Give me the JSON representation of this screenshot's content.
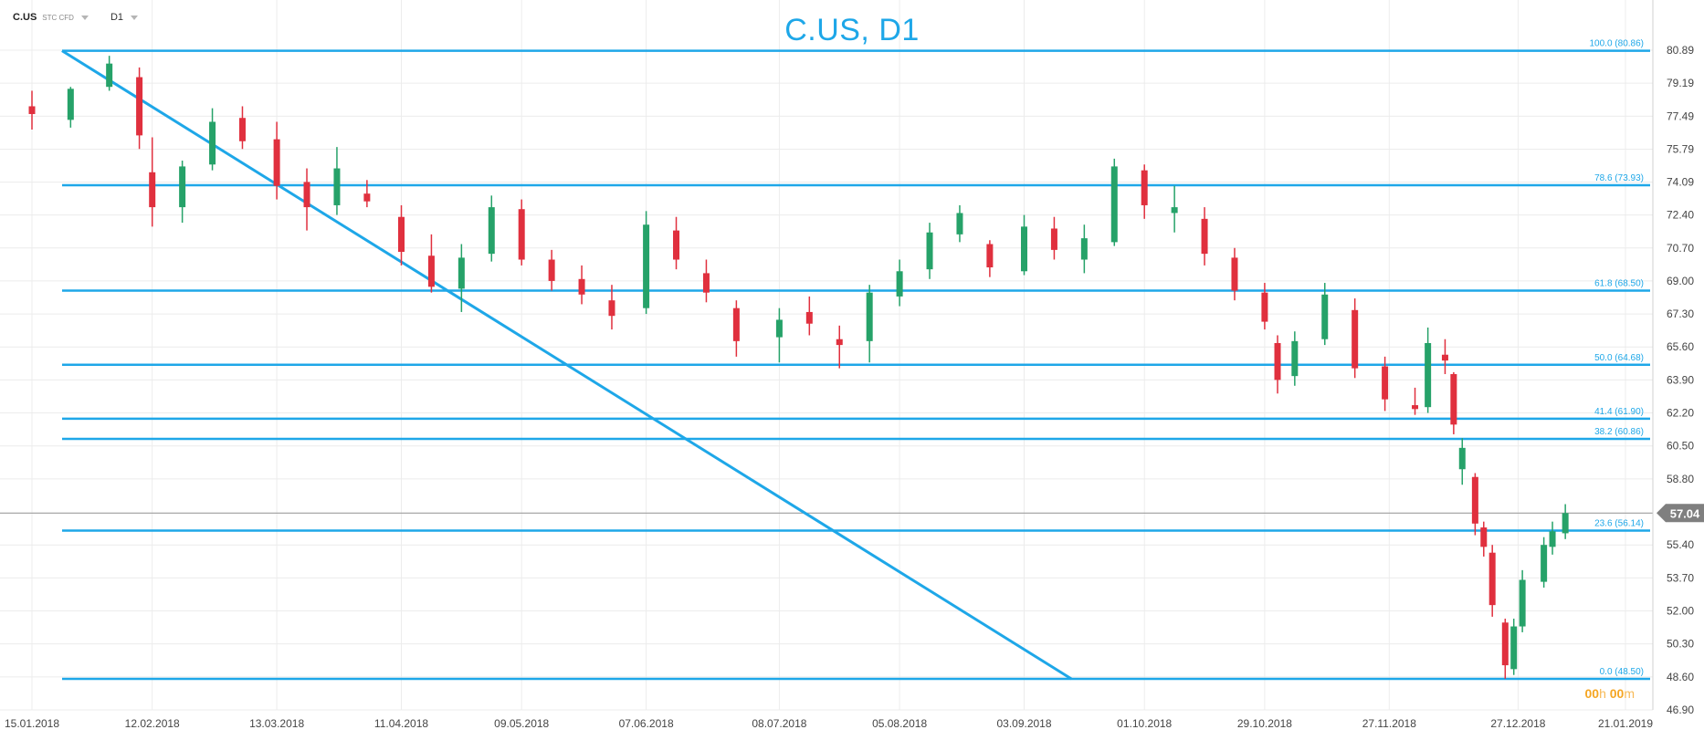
{
  "header": {
    "symbol": "C.US",
    "instrument_type": "STC CFD",
    "timeframe": "D1"
  },
  "title": "C.US, D1",
  "timer": {
    "hours": "00",
    "h": "h",
    "minutes": "00",
    "m": "m"
  },
  "colors": {
    "up": "#26a269",
    "down": "#e0303e",
    "line": "#1ea7e8",
    "grid": "#ececec",
    "price_tag": "#7f7f7f"
  },
  "chart_data": {
    "type": "candlestick",
    "title": "C.US, D1",
    "ylim": [
      46.9,
      80.89
    ],
    "y_ticks": [
      "80.89",
      "79.19",
      "77.49",
      "75.79",
      "74.09",
      "72.40",
      "70.70",
      "69.00",
      "67.30",
      "65.60",
      "63.90",
      "62.20",
      "60.50",
      "58.80",
      "57.04",
      "55.40",
      "53.70",
      "52.00",
      "50.30",
      "48.60",
      "46.90"
    ],
    "x_ticks": [
      "15.01.2018",
      "12.02.2018",
      "13.03.2018",
      "11.04.2018",
      "09.05.2018",
      "07.06.2018",
      "08.07.2018",
      "05.08.2018",
      "03.09.2018",
      "01.10.2018",
      "29.10.2018",
      "27.11.2018",
      "27.12.2018",
      "21.01.2019"
    ],
    "x_range": [
      "15.01.2018",
      "21.01.2019"
    ],
    "current_price": "57.04",
    "fibonacci_levels": [
      {
        "label": "100.0 (80.86)",
        "value": 80.86
      },
      {
        "label": "78.6 (73.93)",
        "value": 73.93
      },
      {
        "label": "61.8 (68.50)",
        "value": 68.5
      },
      {
        "label": "50.0 (64.68)",
        "value": 64.68
      },
      {
        "label": "41.4 (61.90)",
        "value": 61.9
      },
      {
        "label": "38.2 (60.86)",
        "value": 60.86
      },
      {
        "label": "23.6 (56.14)",
        "value": 56.14
      },
      {
        "label": "0.0 (48.50)",
        "value": 48.5
      }
    ],
    "trendline": {
      "from": {
        "date": "22.01.2018",
        "value": 80.86
      },
      "to": {
        "date": "14.09.2018",
        "value": 48.5
      }
    },
    "series": [
      {
        "x": "15.01.2018",
        "o": 78.0,
        "h": 78.8,
        "l": 76.8,
        "c": 77.6
      },
      {
        "x": "24.01.2018",
        "o": 77.3,
        "h": 79.0,
        "l": 76.9,
        "c": 78.9
      },
      {
        "x": "02.02.2018",
        "o": 79.0,
        "h": 80.6,
        "l": 78.8,
        "c": 80.2
      },
      {
        "x": "09.02.2018",
        "o": 79.5,
        "h": 80.0,
        "l": 75.8,
        "c": 76.5
      },
      {
        "x": "12.02.2018",
        "o": 74.6,
        "h": 76.4,
        "l": 71.8,
        "c": 72.8
      },
      {
        "x": "19.02.2018",
        "o": 72.8,
        "h": 75.2,
        "l": 72.0,
        "c": 74.9
      },
      {
        "x": "26.02.2018",
        "o": 75.0,
        "h": 77.9,
        "l": 74.7,
        "c": 77.2
      },
      {
        "x": "05.03.2018",
        "o": 77.4,
        "h": 78.0,
        "l": 75.8,
        "c": 76.2
      },
      {
        "x": "13.03.2018",
        "o": 76.3,
        "h": 77.2,
        "l": 73.2,
        "c": 73.9
      },
      {
        "x": "20.03.2018",
        "o": 74.1,
        "h": 74.8,
        "l": 71.6,
        "c": 72.8
      },
      {
        "x": "27.03.2018",
        "o": 72.9,
        "h": 75.9,
        "l": 72.4,
        "c": 74.8
      },
      {
        "x": "03.04.2018",
        "o": 73.5,
        "h": 74.2,
        "l": 72.8,
        "c": 73.1
      },
      {
        "x": "11.04.2018",
        "o": 72.3,
        "h": 72.9,
        "l": 69.8,
        "c": 70.5
      },
      {
        "x": "18.04.2018",
        "o": 70.3,
        "h": 71.4,
        "l": 68.4,
        "c": 68.7
      },
      {
        "x": "25.04.2018",
        "o": 68.6,
        "h": 70.9,
        "l": 67.4,
        "c": 70.2
      },
      {
        "x": "02.05.2018",
        "o": 70.4,
        "h": 73.4,
        "l": 70.0,
        "c": 72.8
      },
      {
        "x": "09.05.2018",
        "o": 72.7,
        "h": 73.2,
        "l": 69.8,
        "c": 70.1
      },
      {
        "x": "16.05.2018",
        "o": 70.1,
        "h": 70.6,
        "l": 68.5,
        "c": 69.0
      },
      {
        "x": "23.05.2018",
        "o": 69.1,
        "h": 69.8,
        "l": 67.8,
        "c": 68.3
      },
      {
        "x": "30.05.2018",
        "o": 68.0,
        "h": 68.8,
        "l": 66.5,
        "c": 67.2
      },
      {
        "x": "07.06.2018",
        "o": 67.6,
        "h": 72.6,
        "l": 67.3,
        "c": 71.9
      },
      {
        "x": "14.06.2018",
        "o": 71.6,
        "h": 72.3,
        "l": 69.6,
        "c": 70.1
      },
      {
        "x": "21.06.2018",
        "o": 69.4,
        "h": 70.1,
        "l": 67.9,
        "c": 68.4
      },
      {
        "x": "28.06.2018",
        "o": 67.6,
        "h": 68.0,
        "l": 65.1,
        "c": 65.9
      },
      {
        "x": "08.07.2018",
        "o": 66.1,
        "h": 67.6,
        "l": 64.8,
        "c": 67.0
      },
      {
        "x": "15.07.2018",
        "o": 67.4,
        "h": 68.2,
        "l": 66.2,
        "c": 66.8
      },
      {
        "x": "22.07.2018",
        "o": 66.0,
        "h": 66.7,
        "l": 64.5,
        "c": 65.7
      },
      {
        "x": "29.07.2018",
        "o": 65.9,
        "h": 68.8,
        "l": 64.8,
        "c": 68.4
      },
      {
        "x": "05.08.2018",
        "o": 68.2,
        "h": 70.1,
        "l": 67.7,
        "c": 69.5
      },
      {
        "x": "12.08.2018",
        "o": 69.6,
        "h": 72.0,
        "l": 69.1,
        "c": 71.5
      },
      {
        "x": "19.08.2018",
        "o": 71.4,
        "h": 72.9,
        "l": 71.0,
        "c": 72.5
      },
      {
        "x": "26.08.2018",
        "o": 70.9,
        "h": 71.1,
        "l": 69.2,
        "c": 69.7
      },
      {
        "x": "03.09.2018",
        "o": 69.5,
        "h": 72.4,
        "l": 69.3,
        "c": 71.8
      },
      {
        "x": "10.09.2018",
        "o": 71.7,
        "h": 72.3,
        "l": 70.1,
        "c": 70.6
      },
      {
        "x": "17.09.2018",
        "o": 70.1,
        "h": 71.9,
        "l": 69.4,
        "c": 71.2
      },
      {
        "x": "24.09.2018",
        "o": 71.0,
        "h": 75.3,
        "l": 70.8,
        "c": 74.9
      },
      {
        "x": "01.10.2018",
        "o": 74.7,
        "h": 75.0,
        "l": 72.2,
        "c": 72.9
      },
      {
        "x": "08.10.2018",
        "o": 72.5,
        "h": 73.9,
        "l": 71.5,
        "c": 72.8
      },
      {
        "x": "15.10.2018",
        "o": 72.2,
        "h": 72.8,
        "l": 69.8,
        "c": 70.4
      },
      {
        "x": "22.10.2018",
        "o": 70.2,
        "h": 70.7,
        "l": 68.0,
        "c": 68.5
      },
      {
        "x": "29.10.2018",
        "o": 68.4,
        "h": 68.9,
        "l": 66.5,
        "c": 66.9
      },
      {
        "x": "01.11.2018",
        "o": 65.8,
        "h": 66.2,
        "l": 63.2,
        "c": 63.9
      },
      {
        "x": "05.11.2018",
        "o": 64.1,
        "h": 66.4,
        "l": 63.6,
        "c": 65.9
      },
      {
        "x": "12.11.2018",
        "o": 66.0,
        "h": 68.9,
        "l": 65.7,
        "c": 68.3
      },
      {
        "x": "19.11.2018",
        "o": 67.5,
        "h": 68.1,
        "l": 64.0,
        "c": 64.5
      },
      {
        "x": "26.11.2018",
        "o": 64.6,
        "h": 65.1,
        "l": 62.3,
        "c": 62.9
      },
      {
        "x": "03.12.2018",
        "o": 62.6,
        "h": 63.5,
        "l": 62.1,
        "c": 62.4
      },
      {
        "x": "06.12.2018",
        "o": 62.5,
        "h": 66.6,
        "l": 62.2,
        "c": 65.8
      },
      {
        "x": "10.12.2018",
        "o": 65.2,
        "h": 66.0,
        "l": 64.2,
        "c": 64.9
      },
      {
        "x": "12.12.2018",
        "o": 64.2,
        "h": 64.3,
        "l": 61.1,
        "c": 61.6
      },
      {
        "x": "14.12.2018",
        "o": 59.3,
        "h": 60.9,
        "l": 58.5,
        "c": 60.4
      },
      {
        "x": "17.12.2018",
        "o": 58.9,
        "h": 59.1,
        "l": 55.9,
        "c": 56.5
      },
      {
        "x": "19.12.2018",
        "o": 56.3,
        "h": 56.6,
        "l": 54.8,
        "c": 55.3
      },
      {
        "x": "21.12.2018",
        "o": 55.0,
        "h": 55.4,
        "l": 51.7,
        "c": 52.3
      },
      {
        "x": "24.12.2018",
        "o": 51.4,
        "h": 51.6,
        "l": 48.5,
        "c": 49.2
      },
      {
        "x": "26.12.2018",
        "o": 49.0,
        "h": 51.6,
        "l": 48.7,
        "c": 51.2
      },
      {
        "x": "28.12.2018",
        "o": 51.2,
        "h": 54.1,
        "l": 50.9,
        "c": 53.6
      },
      {
        "x": "02.01.2019",
        "o": 53.5,
        "h": 55.8,
        "l": 53.2,
        "c": 55.4
      },
      {
        "x": "04.01.2019",
        "o": 55.3,
        "h": 56.6,
        "l": 54.9,
        "c": 56.1
      },
      {
        "x": "07.01.2019",
        "o": 56.0,
        "h": 57.5,
        "l": 55.7,
        "c": 57.04
      }
    ]
  }
}
